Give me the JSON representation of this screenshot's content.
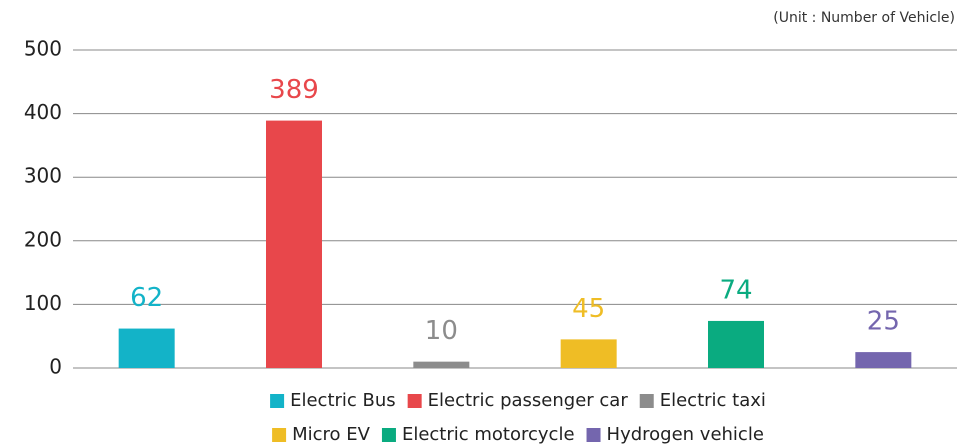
{
  "chart_data": {
    "type": "bar",
    "unit_note": "(Unit : Number of Vehicle)",
    "categories": [
      "Electric Bus",
      "Electric passenger car",
      "Electric taxi",
      "Micro EV",
      "Electric motorcycle",
      "Hydrogen vehicle"
    ],
    "values": [
      62,
      389,
      10,
      45,
      74,
      25
    ],
    "colors": [
      "#13b3c8",
      "#e8474b",
      "#8c8c8c",
      "#efbd25",
      "#0aab80",
      "#7466ae"
    ],
    "ylim": [
      0,
      500
    ],
    "yticks": [
      0,
      100,
      200,
      300,
      400,
      500
    ],
    "grid": true,
    "legend": "bottom"
  }
}
